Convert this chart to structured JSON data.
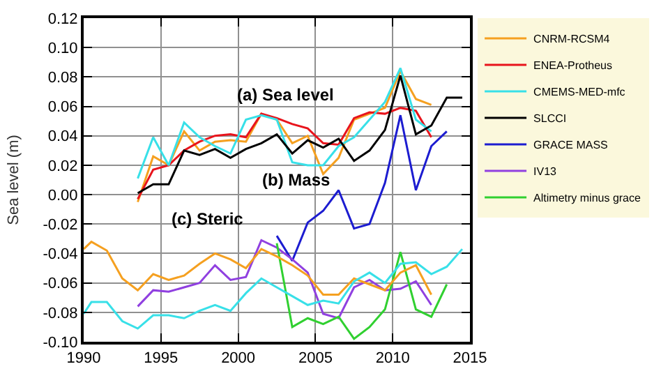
{
  "chart_data": {
    "type": "line",
    "ylabel": "Sea level (m)",
    "xlim": [
      1990,
      2015
    ],
    "xticks": [
      1990,
      1995,
      2000,
      2005,
      2010,
      2015
    ],
    "ylim": [
      -0.1,
      0.12
    ],
    "yticks": [
      {
        "value": -0.1,
        "label": "-0.10"
      },
      {
        "value": -0.08,
        "label": "-0.08"
      },
      {
        "value": -0.06,
        "label": "-0.06"
      },
      {
        "value": -0.04,
        "label": "-0.04"
      },
      {
        "value": -0.02,
        "label": "-0.02"
      },
      {
        "value": 0,
        "label": "0.00"
      },
      {
        "value": 0.02,
        "label": "0.02"
      },
      {
        "value": 0.04,
        "label": "0.04"
      },
      {
        "value": 0.06,
        "label": "0.06"
      },
      {
        "value": 0.08,
        "label": "0.08"
      },
      {
        "value": 0.1,
        "label": "0.10"
      },
      {
        "value": 0.12,
        "label": "0.12"
      }
    ],
    "grid": true,
    "legend": "right",
    "marker": "none",
    "line_style": "solid",
    "annotations": [
      "(a) Sea level",
      "(b) Mass",
      "(c) Steric"
    ],
    "series": [
      {
        "name": "CNRM-RCSM4",
        "color": "#f5a020",
        "x": [
          1993.5,
          1994.5,
          1995.5,
          1996.5,
          1997.5,
          1998.5,
          1999.5,
          2000.5,
          2001.5,
          2002.5,
          2003.5,
          2004.5,
          2005.5,
          2006.5,
          2007.5,
          2008.5,
          2009.5,
          2010.5,
          2011.5,
          2012.5
        ],
        "values": [
          -0.005,
          0.026,
          0.02,
          0.043,
          0.03,
          0.036,
          0.037,
          0.036,
          0.055,
          0.051,
          0.035,
          0.04,
          0.014,
          0.025,
          0.051,
          0.055,
          0.059,
          0.084,
          0.065,
          0.061
        ]
      },
      {
        "name": "ENEA-Protheus",
        "color": "#e8141c",
        "x": [
          1993.5,
          1994.5,
          1995.5,
          1996.5,
          1997.5,
          1998.5,
          1999.5,
          2000.5,
          2001.5,
          2002.5,
          2003.5,
          2004.5,
          2005.5,
          2006.5,
          2007.5,
          2008.5,
          2009.5,
          2010.5,
          2011.5,
          2012.5
        ],
        "values": [
          -0.003,
          0.017,
          0.02,
          0.03,
          0.036,
          0.04,
          0.041,
          0.039,
          0.055,
          0.052,
          0.048,
          0.045,
          0.035,
          0.034,
          0.052,
          0.056,
          0.055,
          0.059,
          0.057,
          0.039
        ]
      },
      {
        "name": "CMEMS-MED-mfc",
        "color": "#38e0e8",
        "x": [
          1993.5,
          1994.5,
          1995.5,
          1996.5,
          1997.5,
          1998.5,
          1999.5,
          2000.5,
          2001.5,
          2002.5,
          2003.5,
          2004.5,
          2005.5,
          2006.5,
          2007.5,
          2008.5,
          2009.5,
          2010.5,
          2011.5,
          2012.5
        ],
        "values": [
          0.011,
          0.039,
          0.02,
          0.049,
          0.039,
          0.033,
          0.028,
          0.051,
          0.054,
          0.051,
          0.022,
          0.02,
          0.02,
          0.033,
          0.039,
          0.051,
          0.063,
          0.086,
          0.051,
          0.043
        ]
      },
      {
        "name": "SLCCI",
        "color": "#000000",
        "x": [
          1993.5,
          1994.5,
          1995.5,
          1996.5,
          1997.5,
          1998.5,
          1999.5,
          2000.5,
          2001.5,
          2002.5,
          2003.5,
          2004.5,
          2005.5,
          2006.5,
          2007.5,
          2008.5,
          2009.5,
          2010.5,
          2011.5,
          2012.5,
          2013.5,
          2014.5
        ],
        "values": [
          0.001,
          0.007,
          0.007,
          0.03,
          0.027,
          0.031,
          0.025,
          0.031,
          0.035,
          0.041,
          0.028,
          0.037,
          0.032,
          0.038,
          0.023,
          0.03,
          0.044,
          0.081,
          0.041,
          0.047,
          0.066,
          0.066
        ]
      },
      {
        "name": "GRACE MASS",
        "color": "#1c1cd0",
        "x": [
          2002.5,
          2003.5,
          2004.5,
          2005.5,
          2006.5,
          2007.5,
          2008.5,
          2009.5,
          2010.5,
          2011.5,
          2012.5,
          2013.5
        ],
        "values": [
          -0.028,
          -0.045,
          -0.019,
          -0.011,
          0.003,
          -0.023,
          -0.02,
          0.008,
          0.054,
          0.003,
          0.033,
          0.043
        ]
      },
      {
        "name": "IV13",
        "color": "#9040e0",
        "x": [
          1993.5,
          1994.5,
          1995.5,
          1996.5,
          1997.5,
          1998.5,
          1999.5,
          2000.5,
          2001.5,
          2002.5,
          2003.5,
          2004.5,
          2005.5,
          2006.5,
          2007.5,
          2008.5,
          2009.5,
          2010.5,
          2011.5,
          2012.5
        ],
        "values": [
          -0.076,
          -0.065,
          -0.066,
          -0.063,
          -0.06,
          -0.048,
          -0.058,
          -0.056,
          -0.031,
          -0.036,
          -0.044,
          -0.053,
          -0.081,
          -0.084,
          -0.063,
          -0.058,
          -0.065,
          -0.064,
          -0.059,
          -0.075
        ]
      },
      {
        "name": "Altimetry minus grace",
        "color": "#30d030",
        "x": [
          2002.5,
          2003.5,
          2004.5,
          2005.5,
          2006.5,
          2007.5,
          2008.5,
          2009.5,
          2010.5,
          2011.5,
          2012.5,
          2013.5
        ],
        "values": [
          -0.033,
          -0.09,
          -0.084,
          -0.088,
          -0.083,
          -0.098,
          -0.09,
          -0.078,
          -0.039,
          -0.078,
          -0.083,
          -0.061
        ]
      },
      {
        "color": "#f5a020",
        "x": [
          1990,
          1990.5,
          1991.5,
          1992.5,
          1993.5,
          1994.5,
          1995.5,
          1996.5,
          1997.5,
          1998.5,
          1999.5,
          2000.5,
          2001.5,
          2002.5,
          2003.5,
          2004.5,
          2005.5,
          2006.5,
          2007.5,
          2008.5,
          2009.5,
          2010.5,
          2011.5,
          2012.5
        ],
        "values": [
          -0.037,
          -0.032,
          -0.038,
          -0.057,
          -0.065,
          -0.054,
          -0.058,
          -0.055,
          -0.047,
          -0.04,
          -0.044,
          -0.05,
          -0.037,
          -0.042,
          -0.048,
          -0.055,
          -0.068,
          -0.068,
          -0.057,
          -0.061,
          -0.065,
          -0.053,
          -0.048,
          -0.068
        ]
      },
      {
        "color": "#38e0e8",
        "x": [
          1990,
          1990.5,
          1991.5,
          1992.5,
          1993.5,
          1994.5,
          1995.5,
          1996.5,
          1997.5,
          1998.5,
          1999.5,
          2000.5,
          2001.5,
          2002.5,
          2003.5,
          2004.5,
          2005.5,
          2006.5,
          2007.5,
          2008.5,
          2009.5,
          2010.5,
          2011.5,
          2012.5,
          2013.5,
          2014.5
        ],
        "values": [
          -0.081,
          -0.073,
          -0.073,
          -0.086,
          -0.091,
          -0.082,
          -0.082,
          -0.084,
          -0.079,
          -0.075,
          -0.079,
          -0.067,
          -0.057,
          -0.063,
          -0.069,
          -0.075,
          -0.072,
          -0.074,
          -0.059,
          -0.053,
          -0.06,
          -0.047,
          -0.046,
          -0.054,
          -0.049,
          -0.037
        ]
      }
    ]
  }
}
